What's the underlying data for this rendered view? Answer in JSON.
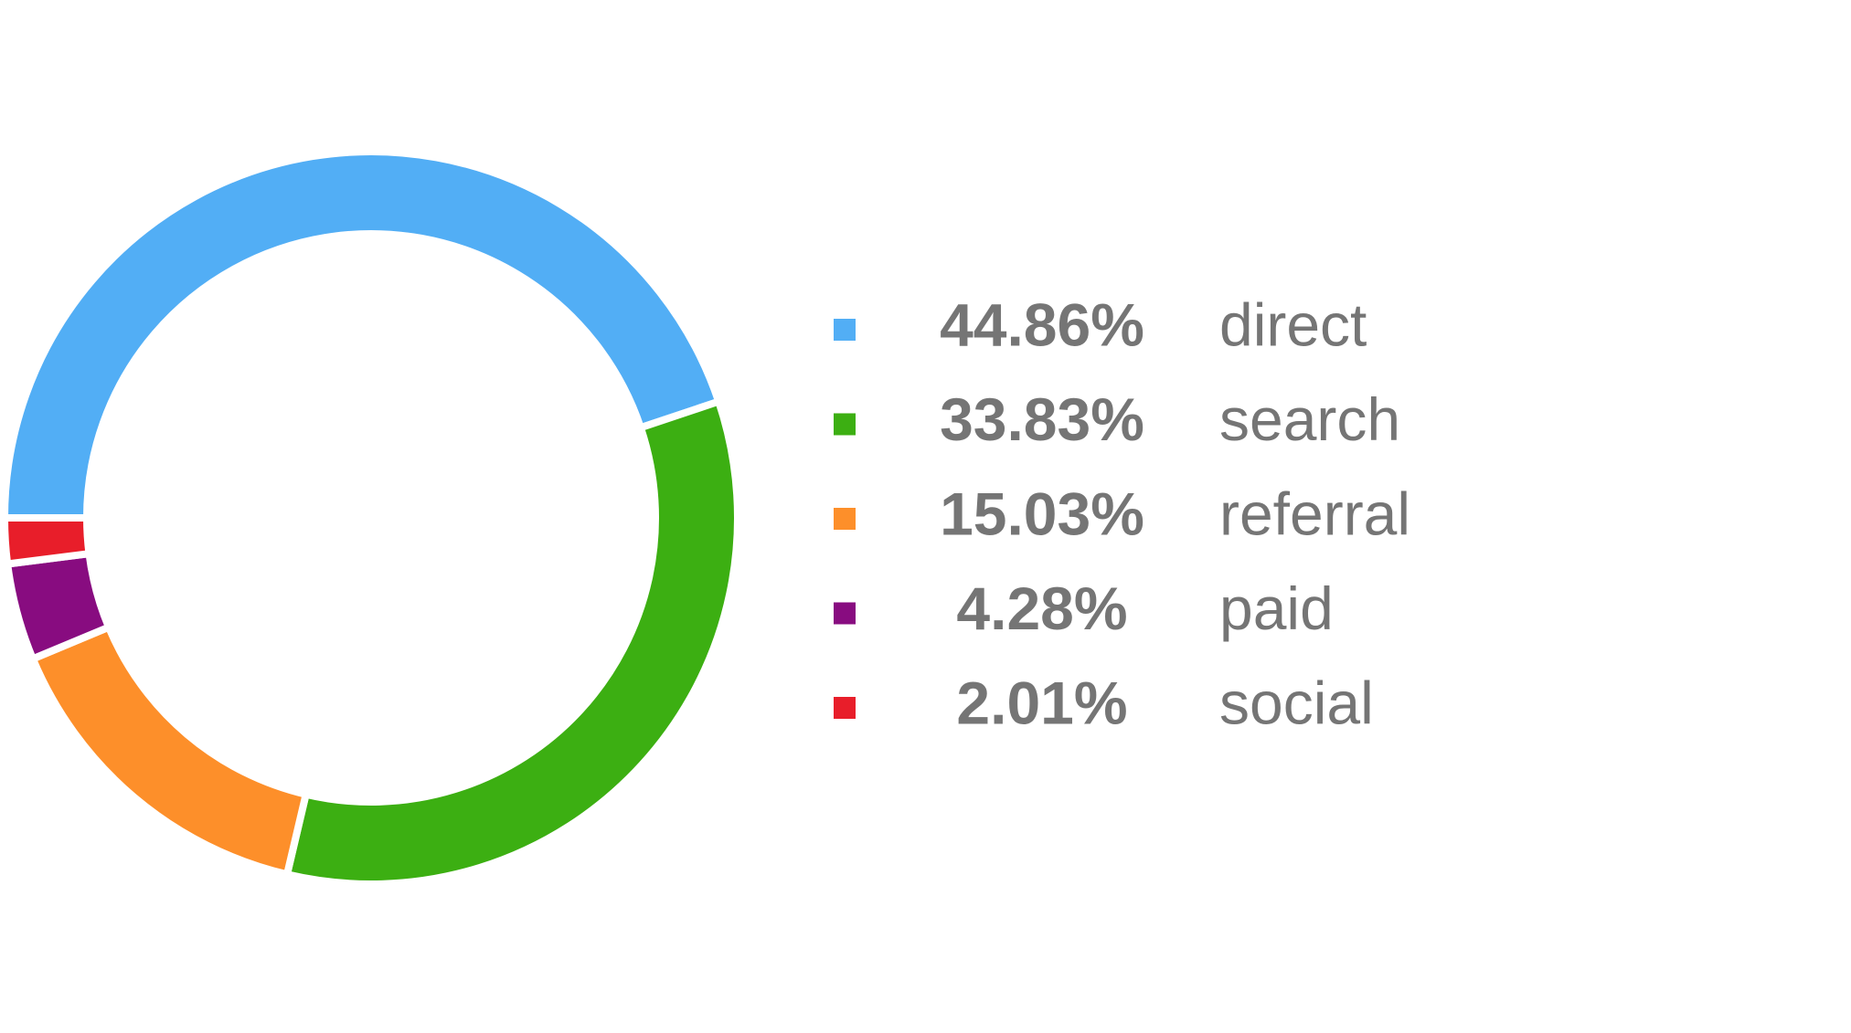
{
  "chart_data": {
    "type": "donut",
    "categories": [
      "direct",
      "search",
      "referral",
      "paid",
      "social"
    ],
    "values": [
      44.86,
      33.83,
      15.03,
      4.28,
      2.01
    ],
    "value_labels": [
      "44.86%",
      "33.83%",
      "15.03%",
      "4.28%",
      "2.01%"
    ],
    "colors": [
      "#52aef5",
      "#3caf12",
      "#fd8f2a",
      "#880c80",
      "#e81e2a"
    ]
  }
}
